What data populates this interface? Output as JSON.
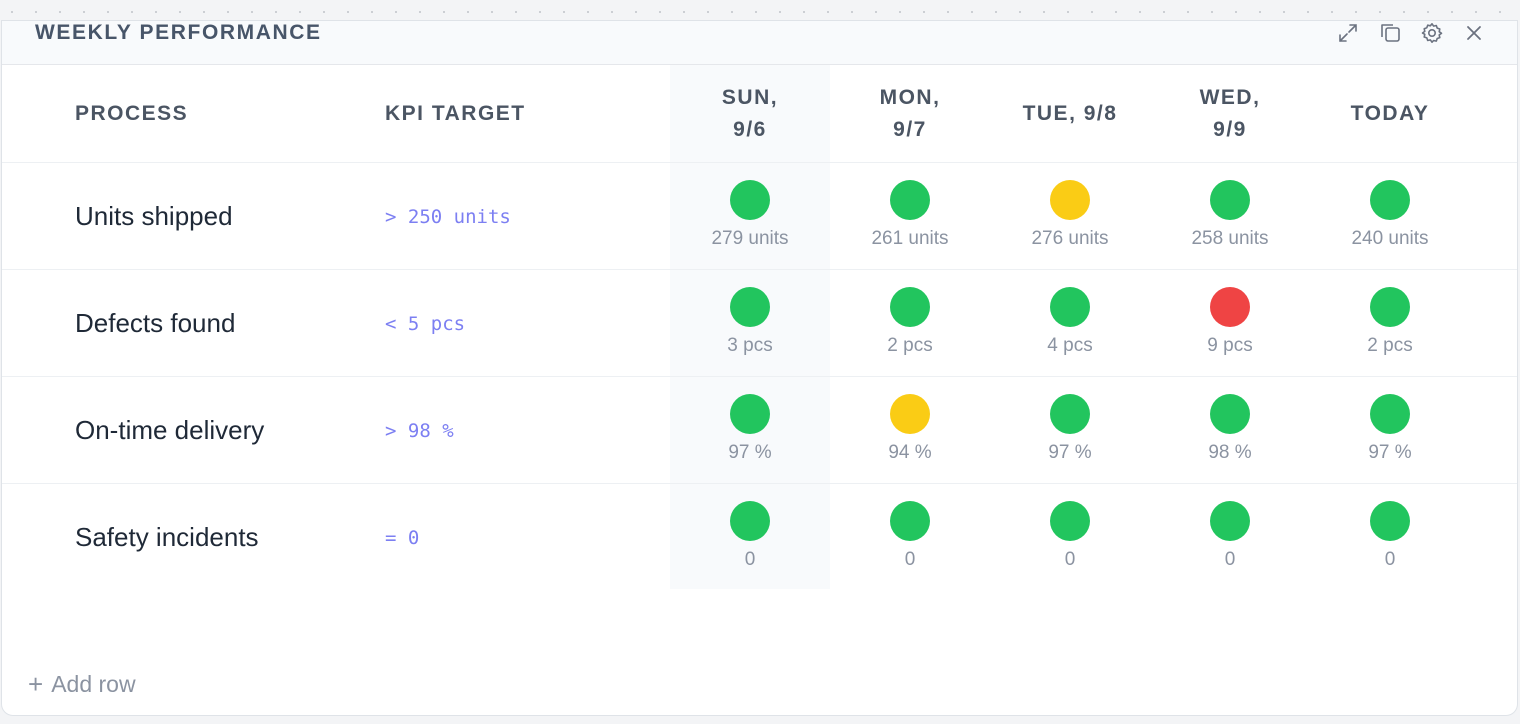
{
  "widget": {
    "title": "WEEKLY PERFORMANCE",
    "toolbar": {
      "expand_icon": "expand-icon",
      "duplicate_icon": "duplicate-icon",
      "settings_icon": "gear-icon",
      "close_icon": "close-icon"
    }
  },
  "table": {
    "headers": {
      "process": "PROCESS",
      "kpi_target": "KPI TARGET",
      "days": [
        {
          "line1": "SUN,",
          "line2": "9/6"
        },
        {
          "line1": "MON,",
          "line2": "9/7"
        },
        {
          "line1": "TUE, 9/8",
          "line2": ""
        },
        {
          "line1": "WED,",
          "line2": "9/9"
        },
        {
          "line1": "TODAY",
          "line2": ""
        }
      ]
    },
    "rows": [
      {
        "process": "Units shipped",
        "kpi": "> 250 units",
        "cells": [
          {
            "status": "green",
            "value": "279 units"
          },
          {
            "status": "green",
            "value": "261 units"
          },
          {
            "status": "yellow",
            "value": "276 units"
          },
          {
            "status": "green",
            "value": "258 units"
          },
          {
            "status": "green",
            "value": "240 units"
          }
        ]
      },
      {
        "process": "Defects found",
        "kpi": "< 5 pcs",
        "cells": [
          {
            "status": "green",
            "value": "3 pcs"
          },
          {
            "status": "green",
            "value": "2 pcs"
          },
          {
            "status": "green",
            "value": "4 pcs"
          },
          {
            "status": "red",
            "value": "9 pcs"
          },
          {
            "status": "green",
            "value": "2 pcs"
          }
        ]
      },
      {
        "process": "On-time delivery",
        "kpi": "> 98 %",
        "cells": [
          {
            "status": "green",
            "value": "97 %"
          },
          {
            "status": "yellow",
            "value": "94 %"
          },
          {
            "status": "green",
            "value": "97 %"
          },
          {
            "status": "green",
            "value": "98 %"
          },
          {
            "status": "green",
            "value": "97 %"
          }
        ]
      },
      {
        "process": "Safety incidents",
        "kpi": "= 0",
        "cells": [
          {
            "status": "green",
            "value": "0"
          },
          {
            "status": "green",
            "value": "0"
          },
          {
            "status": "green",
            "value": "0"
          },
          {
            "status": "green",
            "value": "0"
          },
          {
            "status": "green",
            "value": "0"
          }
        ]
      }
    ]
  },
  "footer": {
    "add_row_label": "Add row",
    "add_icon": "plus-icon"
  },
  "colors": {
    "green": "#22c55e",
    "yellow": "#facc15",
    "red": "#ef4444",
    "kpi_text": "#7c7ff2"
  }
}
